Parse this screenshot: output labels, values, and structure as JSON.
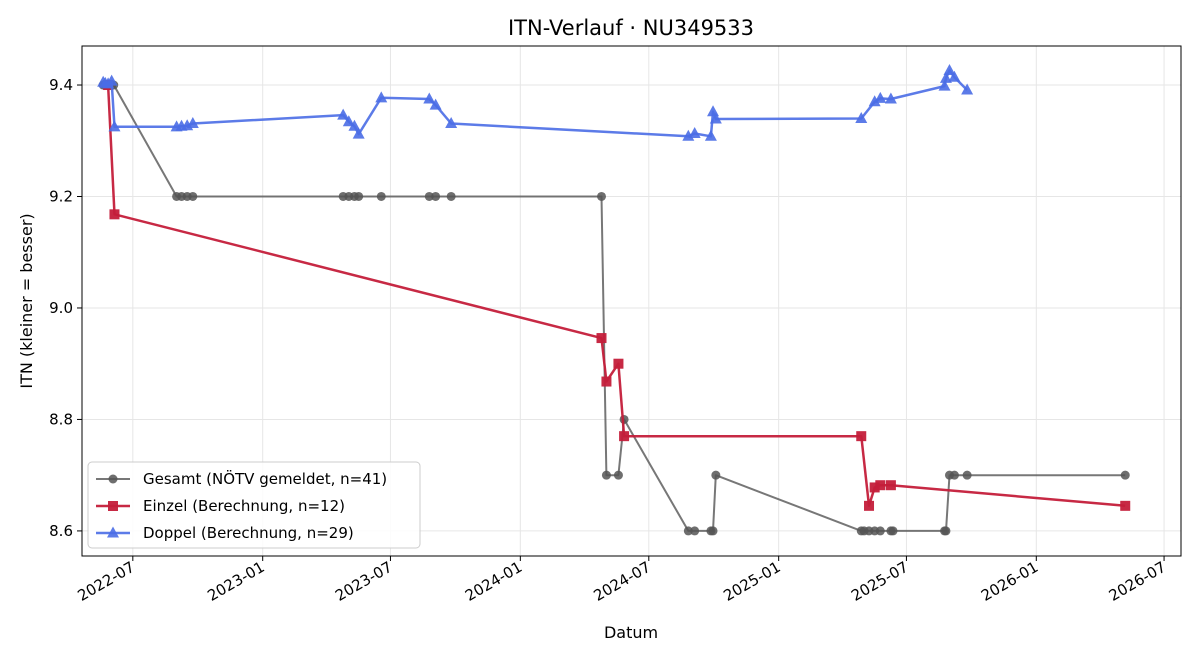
{
  "chart_data": {
    "type": "line",
    "title": "ITN-Verlauf · NU349533",
    "xlabel": "Datum",
    "ylabel": "ITN  (kleiner = besser)",
    "x_type": "date",
    "xlim": [
      "2022-04-20",
      "2026-07-25"
    ],
    "ylim": [
      8.555,
      9.47
    ],
    "x_ticks": [
      "2022-07",
      "2023-01",
      "2023-07",
      "2024-01",
      "2024-07",
      "2025-01",
      "2025-07",
      "2026-01",
      "2026-07"
    ],
    "y_ticks": [
      8.6,
      8.8,
      9.0,
      9.2,
      9.4
    ],
    "grid": true,
    "legend_position": "lower-left",
    "series": [
      {
        "name": "Gesamt (NÖTV gemeldet, n=41)",
        "color": "#555555",
        "marker": "circle",
        "points": [
          [
            "2022-05-20",
            9.4
          ],
          [
            "2022-05-23",
            9.4
          ],
          [
            "2022-05-27",
            9.4
          ],
          [
            "2022-06-01",
            9.4
          ],
          [
            "2022-06-04",
            9.4
          ],
          [
            "2022-09-01",
            9.2
          ],
          [
            "2022-09-08",
            9.2
          ],
          [
            "2022-09-16",
            9.2
          ],
          [
            "2022-09-24",
            9.2
          ],
          [
            "2023-04-25",
            9.2
          ],
          [
            "2023-05-03",
            9.2
          ],
          [
            "2023-05-11",
            9.2
          ],
          [
            "2023-05-17",
            9.2
          ],
          [
            "2023-06-18",
            9.2
          ],
          [
            "2023-08-25",
            9.2
          ],
          [
            "2023-09-03",
            9.2
          ],
          [
            "2023-09-25",
            9.2
          ],
          [
            "2024-04-25",
            9.2
          ],
          [
            "2024-05-02",
            8.7
          ],
          [
            "2024-05-19",
            8.7
          ],
          [
            "2024-05-27",
            8.8
          ],
          [
            "2024-08-26",
            8.6
          ],
          [
            "2024-09-04",
            8.6
          ],
          [
            "2024-09-27",
            8.6
          ],
          [
            "2024-09-30",
            8.6
          ],
          [
            "2024-10-04",
            8.7
          ],
          [
            "2025-04-28",
            8.6
          ],
          [
            "2025-05-02",
            8.6
          ],
          [
            "2025-05-09",
            8.6
          ],
          [
            "2025-05-17",
            8.6
          ],
          [
            "2025-05-25",
            8.6
          ],
          [
            "2025-06-09",
            8.6
          ],
          [
            "2025-06-12",
            8.6
          ],
          [
            "2025-08-24",
            8.6
          ],
          [
            "2025-08-26",
            8.6
          ],
          [
            "2025-08-31",
            8.7
          ],
          [
            "2025-09-07",
            8.7
          ],
          [
            "2025-09-25",
            8.7
          ],
          [
            "2026-05-07",
            8.7
          ]
        ]
      },
      {
        "name": "Einzel (Berechnung, n=12)",
        "color": "#c41e3a",
        "marker": "square",
        "points": [
          [
            "2022-05-27",
            9.4
          ],
          [
            "2022-06-05",
            9.168
          ],
          [
            "2024-04-25",
            8.946
          ],
          [
            "2024-05-02",
            8.868
          ],
          [
            "2024-05-19",
            8.9
          ],
          [
            "2024-05-27",
            8.77
          ],
          [
            "2025-04-28",
            8.77
          ],
          [
            "2025-05-09",
            8.645
          ],
          [
            "2025-05-17",
            8.678
          ],
          [
            "2025-05-25",
            8.682
          ],
          [
            "2025-06-09",
            8.682
          ],
          [
            "2026-05-07",
            8.645
          ]
        ]
      },
      {
        "name": "Doppel (Berechnung, n=29)",
        "color": "#4a6de5",
        "marker": "triangle",
        "points": [
          [
            "2022-05-20",
            9.405
          ],
          [
            "2022-05-23",
            9.403
          ],
          [
            "2022-05-27",
            9.402
          ],
          [
            "2022-06-01",
            9.407
          ],
          [
            "2022-06-05",
            9.325
          ],
          [
            "2022-09-01",
            9.325
          ],
          [
            "2022-09-08",
            9.326
          ],
          [
            "2022-09-16",
            9.327
          ],
          [
            "2022-09-24",
            9.331
          ],
          [
            "2023-04-25",
            9.346
          ],
          [
            "2023-05-03",
            9.334
          ],
          [
            "2023-05-11",
            9.326
          ],
          [
            "2023-05-17",
            9.312
          ],
          [
            "2023-06-18",
            9.377
          ],
          [
            "2023-08-25",
            9.375
          ],
          [
            "2023-09-03",
            9.364
          ],
          [
            "2023-09-25",
            9.331
          ],
          [
            "2024-08-26",
            9.308
          ],
          [
            "2024-09-04",
            9.313
          ],
          [
            "2024-09-27",
            9.308
          ],
          [
            "2024-09-30",
            9.352
          ],
          [
            "2024-10-04",
            9.339
          ],
          [
            "2025-04-28",
            9.34
          ],
          [
            "2025-05-17",
            9.37
          ],
          [
            "2025-05-25",
            9.376
          ],
          [
            "2025-06-09",
            9.375
          ],
          [
            "2025-08-24",
            9.398
          ],
          [
            "2025-08-26",
            9.412
          ],
          [
            "2025-08-31",
            9.426
          ],
          [
            "2025-09-07",
            9.414
          ],
          [
            "2025-09-25",
            9.391
          ]
        ]
      }
    ]
  }
}
